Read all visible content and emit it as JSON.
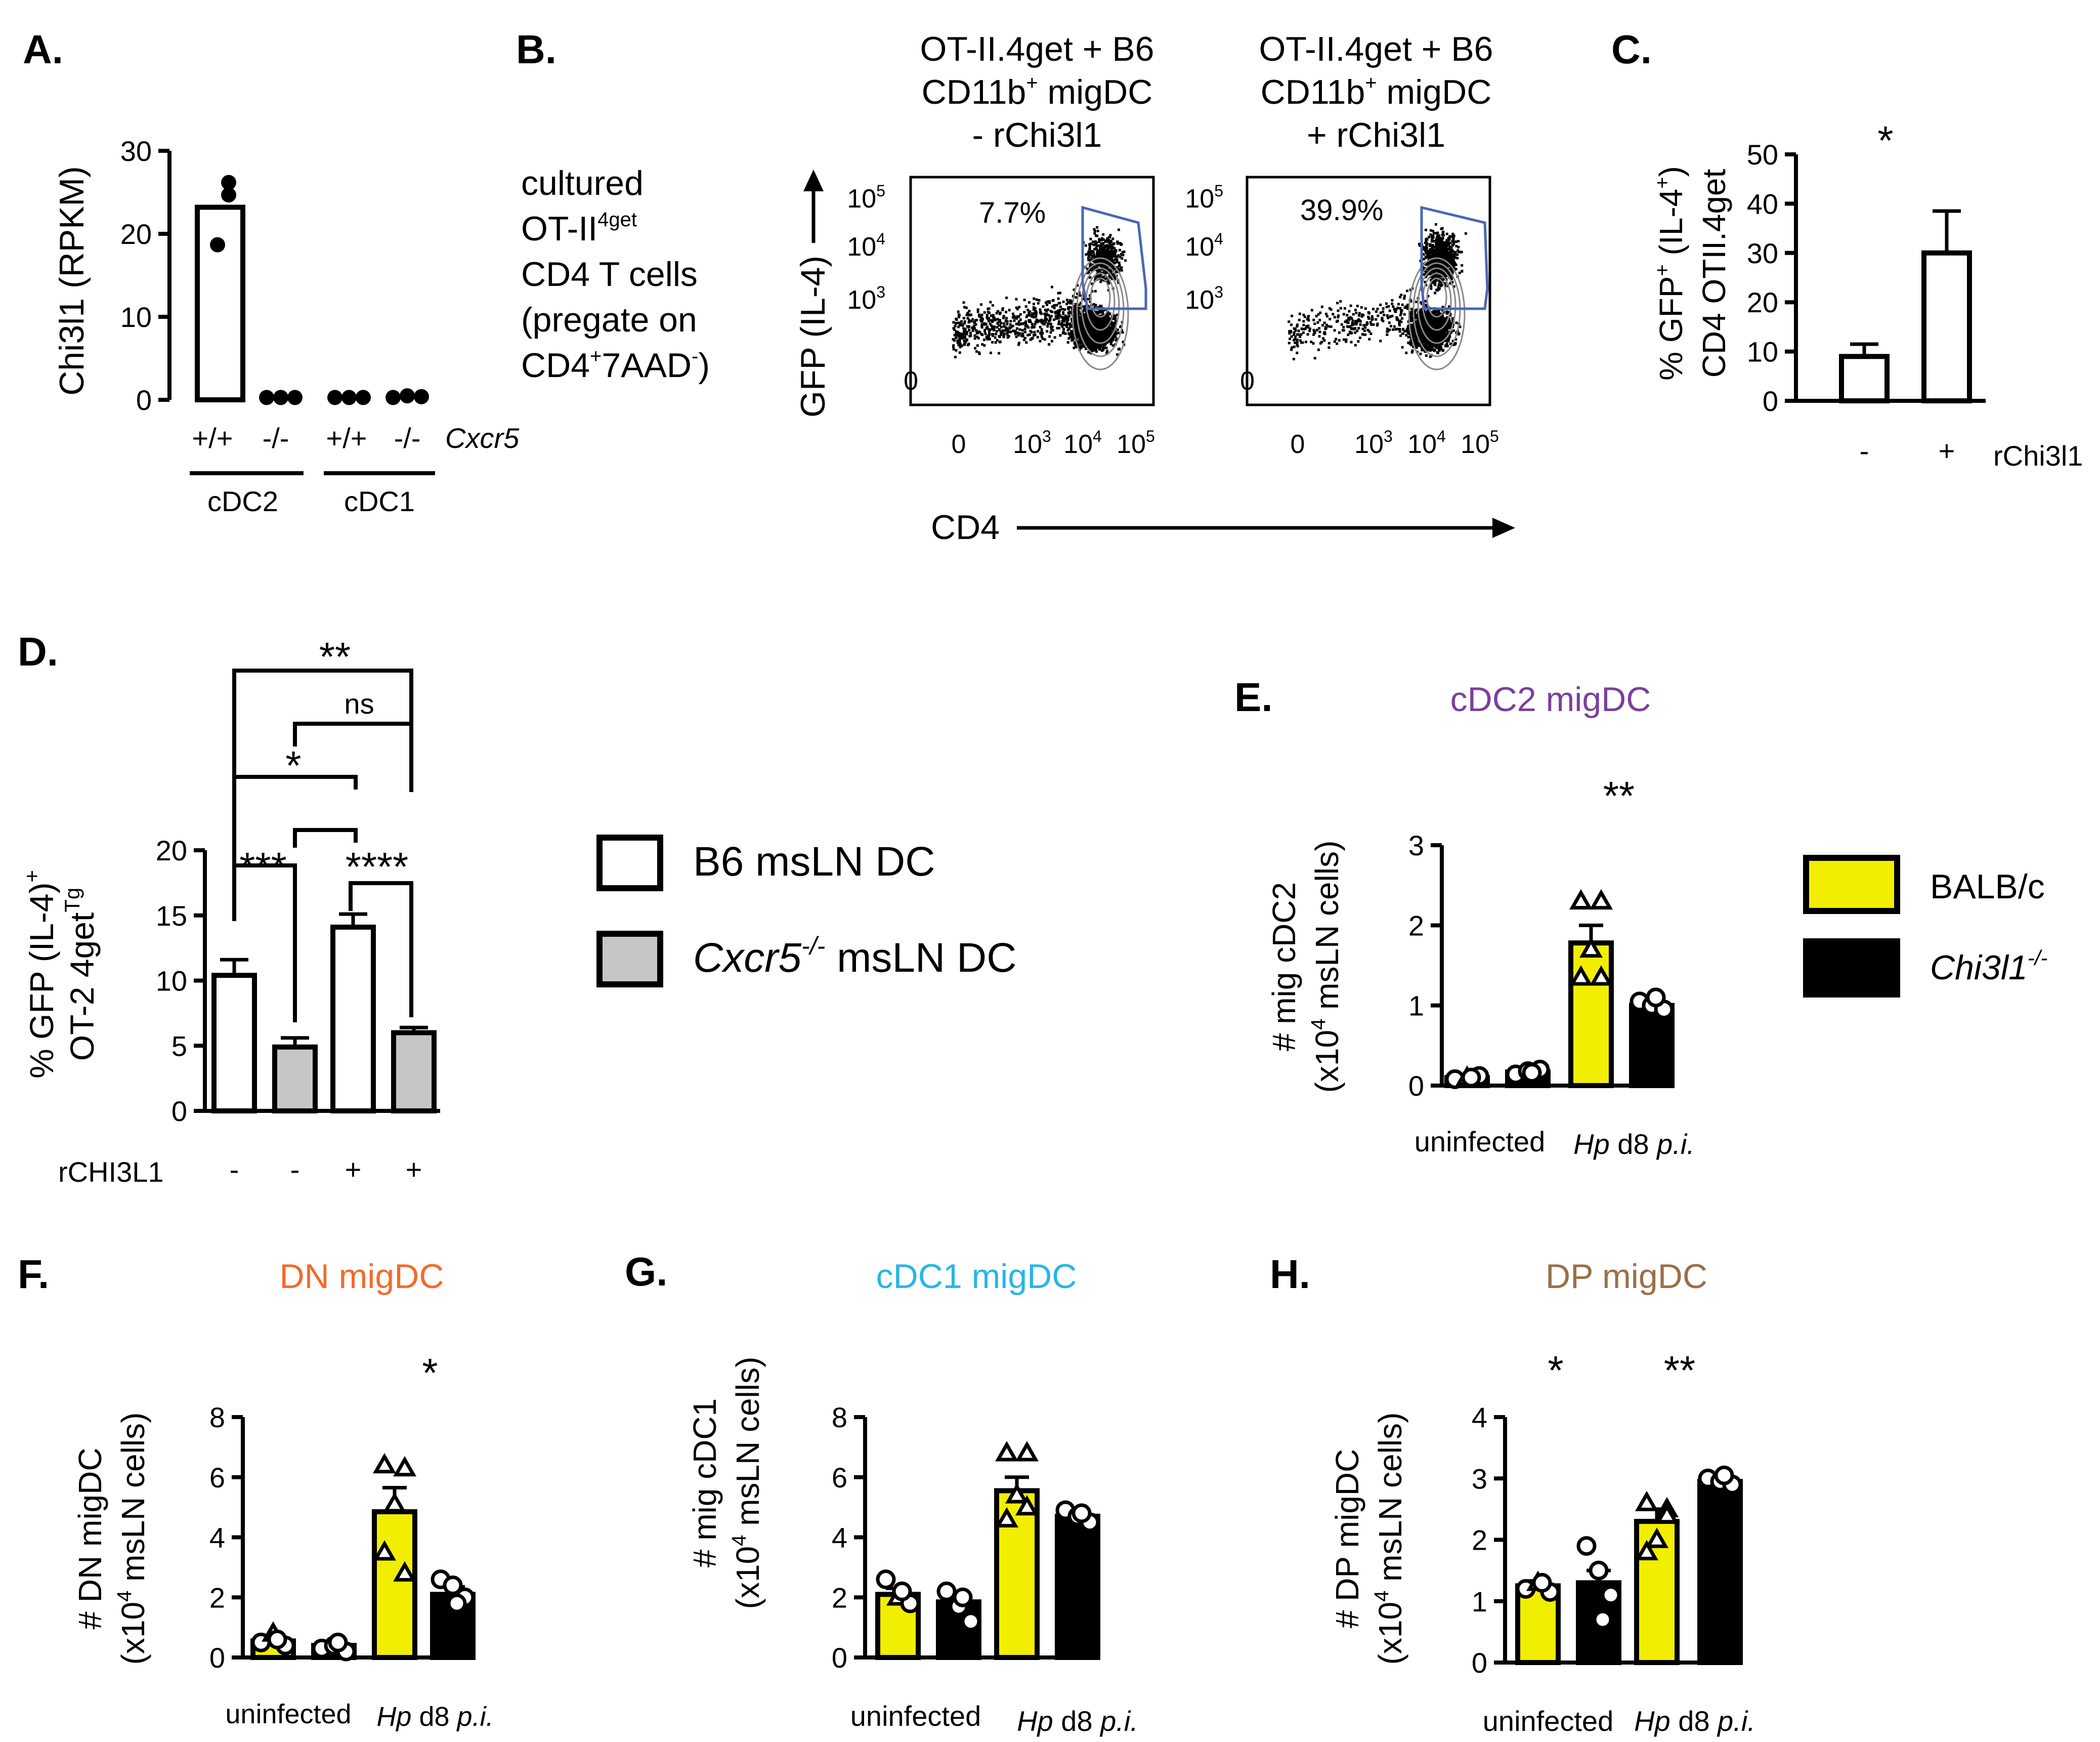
{
  "panels": {
    "A": {
      "letter": "A.",
      "ylabel": "Chi3l1 (RPKM)",
      "yticks": [
        "0",
        "10",
        "20",
        "30"
      ],
      "genotype_labels": [
        "+/+",
        "-/-",
        "+/+",
        "-/-"
      ],
      "gene_label": "Cxcr5",
      "group_labels": [
        "cDC2",
        "cDC1"
      ]
    },
    "B": {
      "letter": "B.",
      "condition_text": [
        "cultured",
        "OT-II",
        "CD4 T cells",
        "(pregate on",
        "CD4",
        "7AAD",
        ")"
      ],
      "condition_sup": [
        "4get",
        "+",
        "-"
      ],
      "plot_titles": [
        [
          "OT-II.4get + B6",
          "CD11b",
          "+",
          " migDC",
          "- rChi3l1"
        ],
        [
          "OT-II.4get + B6",
          "CD11b",
          "+",
          " migDC",
          "+ rChi3l1"
        ]
      ],
      "gate_percents": [
        "7.7%",
        "39.9%"
      ],
      "yaxis_label": "GFP (IL-4)",
      "xaxis_label": "CD4",
      "log_ticks": [
        "10",
        "5",
        "10",
        "4",
        "10",
        "3",
        "0"
      ]
    },
    "C": {
      "letter": "C.",
      "ylabel_line1": "% GFP",
      "ylabel_sup1": "+",
      "ylabel_mid1": " (IL-4",
      "ylabel_sup2": "+",
      "ylabel_end1": ")",
      "ylabel_line2": "CD4 OTII.4get",
      "yticks": [
        "0",
        "10",
        "20",
        "30",
        "40",
        "50"
      ],
      "xticks": [
        "-",
        "+"
      ],
      "factor_label": "rChi3l1",
      "significance": "*"
    },
    "D": {
      "letter": "D.",
      "ylabel_line1": "% GFP (IL-4)",
      "ylabel_sup1": "+",
      "ylabel_line2": "OT-2 4get",
      "ylabel_sup2": "Tg",
      "yticks": [
        "0",
        "5",
        "10",
        "15",
        "20"
      ],
      "treatment_label": "rCHI3L1",
      "treatment_values": [
        "-",
        "-",
        "+",
        "+"
      ],
      "sig_labels": [
        "**",
        "ns",
        "*",
        "***",
        "****"
      ]
    },
    "legend_D": {
      "items": [
        {
          "label": "B6 msLN DC",
          "color": "#ffffff"
        },
        {
          "label_italic": "Cxcr5",
          "label_sup": "-/-",
          "label_rest": " msLN DC",
          "color": "#c6c6c6"
        }
      ]
    },
    "E": {
      "letter": "E.",
      "title": "cDC2 migDC",
      "title_color": "#7a3f9e",
      "ylabel_line1": "# mig cDC2",
      "ylabel_line2_pre": "(x10",
      "ylabel_line2_sup": "4",
      "ylabel_line2_post": " msLN cells)",
      "yticks": [
        "0",
        "1",
        "2",
        "3"
      ],
      "xgroup_labels": [
        "uninfected",
        "Hp",
        " d8 ",
        "p.i."
      ],
      "significance": "**"
    },
    "legend_E": {
      "items": [
        {
          "label": "BALB/c",
          "color": "#f2ee00"
        },
        {
          "label_italic": "Chi3l1",
          "label_sup": "-/-",
          "color": "#000000"
        }
      ]
    },
    "F": {
      "letter": "F.",
      "title": "DN migDC",
      "title_color": "#f26b2a",
      "ylabel_line1": "# DN migDC",
      "ylabel_line2_pre": "(x10",
      "ylabel_line2_sup": "4",
      "ylabel_line2_post": " msLN cells)",
      "yticks": [
        "0",
        "2",
        "4",
        "6",
        "8"
      ],
      "xgroup_labels": [
        "uninfected",
        "Hp",
        " d8 ",
        "p.i."
      ],
      "significance": "*"
    },
    "G": {
      "letter": "G.",
      "title": "cDC1 migDC",
      "title_color": "#27b6e6",
      "ylabel_line1": "# mig cDC1",
      "ylabel_line2_pre": "(x10",
      "ylabel_line2_sup": "4",
      "ylabel_line2_post": " msLN cells)",
      "yticks": [
        "0",
        "2",
        "4",
        "6",
        "8"
      ],
      "xgroup_labels": [
        "uninfected",
        "Hp",
        " d8 ",
        "p.i."
      ]
    },
    "H": {
      "letter": "H.",
      "title": "DP migDC",
      "title_color": "#9a7048",
      "ylabel_line1": "# DP migDC",
      "ylabel_line2_pre": "(x10",
      "ylabel_line2_sup": "4",
      "ylabel_line2_post": " msLN cells)",
      "yticks": [
        "0",
        "1",
        "2",
        "3",
        "4"
      ],
      "xgroup_labels": [
        "uninfected",
        "Hp",
        " d8 ",
        "p.i."
      ],
      "significance": [
        "*",
        "**"
      ]
    }
  },
  "chart_data": [
    {
      "panel": "A",
      "type": "bar",
      "ylabel": "Chi3l1 (RPKM)",
      "ylim": [
        0,
        30
      ],
      "categories": [
        "cDC2 Cxcr5+/+",
        "cDC2 Cxcr5-/-",
        "cDC1 Cxcr5+/+",
        "cDC1 Cxcr5-/-"
      ],
      "values": [
        23.2,
        0.1,
        0.1,
        0.2
      ],
      "points": [
        [
          26,
          24.5,
          18.5
        ],
        [
          0.1,
          0.1,
          0.1
        ],
        [
          0.1,
          0.1,
          0.1
        ],
        [
          0.1,
          0.3,
          0.2
        ]
      ]
    },
    {
      "panel": "C",
      "type": "bar",
      "ylabel": "% GFP+ (IL-4+) CD4 OTII.4get",
      "ylim": [
        0,
        50
      ],
      "categories": [
        "-",
        "+"
      ],
      "values": [
        9,
        30
      ],
      "error": [
        2.5,
        8.5
      ]
    },
    {
      "panel": "D",
      "type": "bar",
      "ylabel": "% GFP (IL-4)+ OT-2 4getTg",
      "ylim": [
        0,
        20
      ],
      "categories": [
        "B6 msLN DC -rCHI3L1",
        "Cxcr5-/- msLN DC -rCHI3L1",
        "B6 msLN DC +rCHI3L1",
        "Cxcr5-/- msLN DC +rCHI3L1"
      ],
      "values": [
        10.4,
        4.9,
        14.1,
        6.0
      ],
      "error": [
        1.2,
        0.7,
        1.0,
        0.4
      ]
    },
    {
      "panel": "E",
      "type": "bar",
      "title": "cDC2 migDC",
      "ylim": [
        0,
        3
      ],
      "series": [
        {
          "name": "BALB/c",
          "values": [
            0.1,
            1.78
          ],
          "error": [
            0.03,
            0.22
          ]
        },
        {
          "name": "Chi3l1-/-",
          "values": [
            0.17,
            1.0
          ],
          "error": [
            0.03,
            0.06
          ]
        }
      ],
      "categories": [
        "uninfected",
        "Hp d8 p.i."
      ],
      "points": {
        "BALB/c": [
          [
            0.08,
            0.1,
            0.12,
            0.1
          ],
          [
            2.3,
            2.3,
            1.7,
            1.35,
            1.35
          ]
        ],
        "Chi3l1-/-": [
          [
            0.14,
            0.18,
            0.2,
            0.16
          ],
          [
            1.05,
            1.0,
            0.95,
            1.1
          ]
        ]
      }
    },
    {
      "panel": "F",
      "type": "bar",
      "title": "DN migDC",
      "ylim": [
        0,
        8
      ],
      "series": [
        {
          "name": "BALB/c",
          "values": [
            0.55,
            4.85
          ],
          "error": [
            0.15,
            0.8
          ]
        },
        {
          "name": "Chi3l1-/-",
          "values": [
            0.4,
            2.1
          ],
          "error": [
            0.1,
            0.25
          ]
        }
      ],
      "categories": [
        "uninfected",
        "Hp d8 p.i."
      ],
      "points": {
        "BALB/c": [
          [
            0.5,
            0.8,
            0.4,
            0.6
          ],
          [
            6.4,
            6.3,
            5.1,
            3.5,
            2.8
          ]
        ],
        "Chi3l1-/-": [
          [
            0.3,
            0.4,
            0.2,
            0.5
          ],
          [
            2.6,
            2.4,
            2.0,
            1.8
          ]
        ]
      }
    },
    {
      "panel": "G",
      "type": "bar",
      "title": "cDC1 migDC",
      "ylim": [
        0,
        8
      ],
      "series": [
        {
          "name": "BALB/c",
          "values": [
            2.1,
            5.55
          ],
          "error": [
            0.2,
            0.45
          ]
        },
        {
          "name": "Chi3l1-/-",
          "values": [
            1.85,
            4.7
          ],
          "error": [
            0.2,
            0.2
          ]
        }
      ],
      "categories": [
        "uninfected",
        "Hp d8 p.i."
      ],
      "points": {
        "BALB/c": [
          [
            2.6,
            2.0,
            1.8,
            2.2
          ],
          [
            6.8,
            6.8,
            5.4,
            4.6,
            5.0
          ]
        ],
        "Chi3l1-/-": [
          [
            2.2,
            1.7,
            1.2,
            2.0
          ],
          [
            4.9,
            4.7,
            4.5,
            4.8
          ]
        ]
      }
    },
    {
      "panel": "H",
      "type": "bar",
      "title": "DP migDC",
      "ylim": [
        0,
        4
      ],
      "series": [
        {
          "name": "BALB/c",
          "values": [
            1.25,
            2.3
          ],
          "error": [
            0.08,
            0.2
          ]
        },
        {
          "name": "Chi3l1-/-",
          "values": [
            1.3,
            2.95
          ],
          "error": [
            0.2,
            0.07
          ]
        }
      ],
      "categories": [
        "uninfected",
        "Hp d8 p.i."
      ],
      "points": {
        "BALB/c": [
          [
            1.2,
            1.3,
            1.15,
            1.3
          ],
          [
            2.6,
            2.5,
            2.0,
            1.8,
            2.4
          ]
        ],
        "Chi3l1-/-": [
          [
            1.9,
            1.5,
            1.1,
            0.7
          ],
          [
            3.0,
            2.95,
            2.9,
            3.05
          ]
        ]
      }
    }
  ]
}
